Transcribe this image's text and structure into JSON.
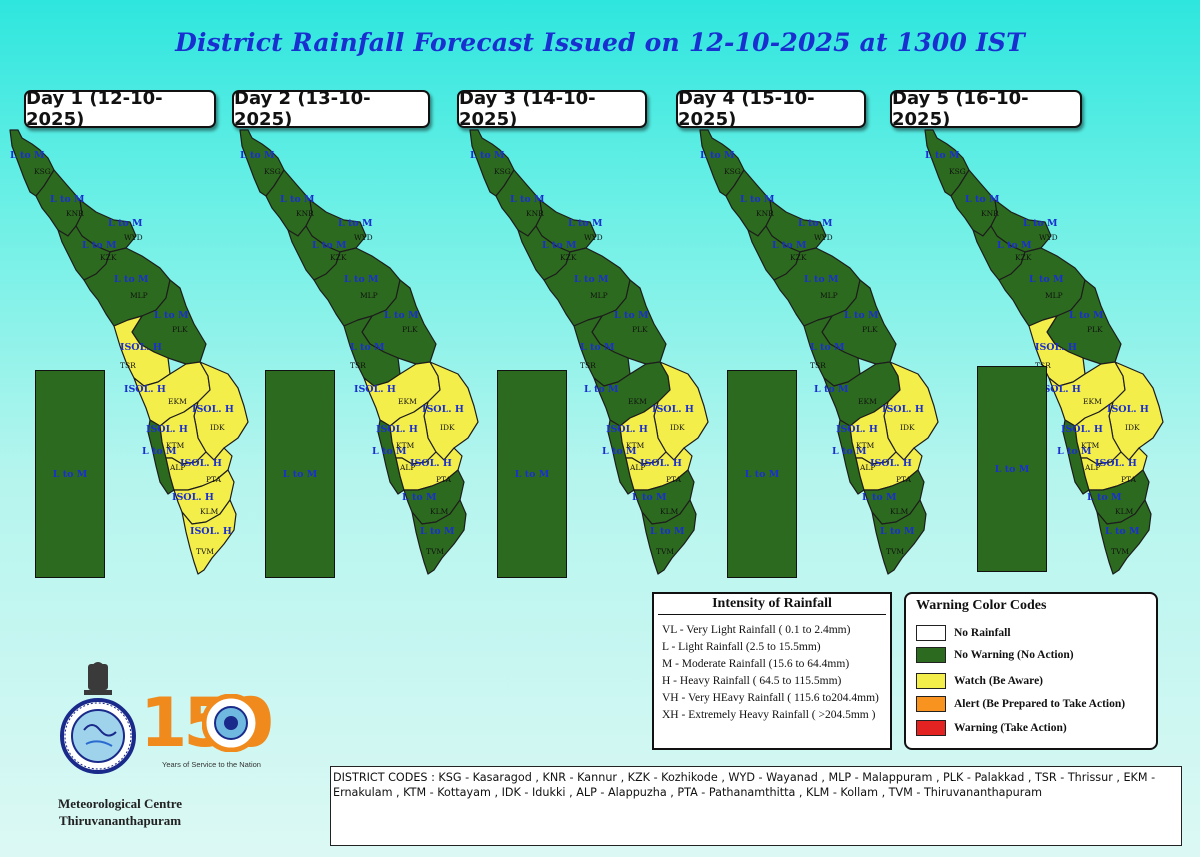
{
  "title": "District Rainfall Forecast Issued on  12-10-2025 at 1300 IST",
  "colors": {
    "green": "#2c6b1f",
    "yellow": "#f4ee4a",
    "orange": "#f7931e",
    "red": "#e32222",
    "white": "#ffffff",
    "label_blue": "#1a2fd0"
  },
  "days": [
    {
      "label": "Day 1 (12-10-2025)",
      "district_colors": {
        "KSG": "green",
        "KNR": "green",
        "WYD": "green",
        "KZK": "green",
        "MLP": "green",
        "PLK": "green",
        "TSR": "yellow",
        "EKM": "yellow",
        "IDK": "yellow",
        "KTM": "yellow",
        "ALP": "green",
        "PTA": "yellow",
        "KLM": "yellow",
        "TVM": "yellow"
      },
      "labels": {
        "KSG": "L to M",
        "KNR": "L to M",
        "WYD": "L to M",
        "KZK": "L to M",
        "MLP": "L to M",
        "PLK": "L to M",
        "TSR": "ISOL. H",
        "EKM": "ISOL. H",
        "IDK": "ISOL. H",
        "KTM": "ISOL. H",
        "ALP": "L to M",
        "PTA": "ISOL. H",
        "KLM": "ISOL. H",
        "TVM": "ISOL. H"
      },
      "lakshadweep": "L to M"
    },
    {
      "label": "Day 2 (13-10-2025)",
      "district_colors": {
        "KSG": "green",
        "KNR": "green",
        "WYD": "green",
        "KZK": "green",
        "MLP": "green",
        "PLK": "green",
        "TSR": "green",
        "EKM": "yellow",
        "IDK": "yellow",
        "KTM": "yellow",
        "ALP": "green",
        "PTA": "yellow",
        "KLM": "green",
        "TVM": "green"
      },
      "labels": {
        "KSG": "L to M",
        "KNR": "L to M",
        "WYD": "L to M",
        "KZK": "L to M",
        "MLP": "L to M",
        "PLK": "L to M",
        "TSR": "L to M",
        "EKM": "ISOL. H",
        "IDK": "ISOL. H",
        "KTM": "ISOL. H",
        "ALP": "L to M",
        "PTA": "ISOL. H",
        "KLM": "L to M",
        "TVM": "L to M"
      },
      "lakshadweep": "L to M"
    },
    {
      "label": "Day 3 (14-10-2025)",
      "district_colors": {
        "KSG": "green",
        "KNR": "green",
        "WYD": "green",
        "KZK": "green",
        "MLP": "green",
        "PLK": "green",
        "TSR": "green",
        "EKM": "green",
        "IDK": "yellow",
        "KTM": "yellow",
        "ALP": "green",
        "PTA": "yellow",
        "KLM": "green",
        "TVM": "green"
      },
      "labels": {
        "KSG": "L to M",
        "KNR": "L to M",
        "WYD": "L to M",
        "KZK": "L to M",
        "MLP": "L to M",
        "PLK": "L to M",
        "TSR": "L to M",
        "EKM": "L to M",
        "IDK": "ISOL. H",
        "KTM": "ISOL. H",
        "ALP": "L to M",
        "PTA": "ISOL. H",
        "KLM": "L to M",
        "TVM": "L to M"
      },
      "lakshadweep": "L to M"
    },
    {
      "label": "Day 4 (15-10-2025)",
      "district_colors": {
        "KSG": "green",
        "KNR": "green",
        "WYD": "green",
        "KZK": "green",
        "MLP": "green",
        "PLK": "green",
        "TSR": "green",
        "EKM": "green",
        "IDK": "yellow",
        "KTM": "yellow",
        "ALP": "green",
        "PTA": "yellow",
        "KLM": "green",
        "TVM": "green"
      },
      "labels": {
        "KSG": "L to M",
        "KNR": "L to M",
        "WYD": "L to M",
        "KZK": "L to M",
        "MLP": "L to M",
        "PLK": "L to M",
        "TSR": "L to M",
        "EKM": "L to M",
        "IDK": "ISOL. H",
        "KTM": "ISOL. H",
        "ALP": "L to M",
        "PTA": "ISOL. H",
        "KLM": "L to M",
        "TVM": "L to M"
      },
      "lakshadweep": "L to M"
    },
    {
      "label": "Day 5 (16-10-2025)",
      "district_colors": {
        "KSG": "green",
        "KNR": "green",
        "WYD": "green",
        "KZK": "green",
        "MLP": "green",
        "PLK": "green",
        "TSR": "yellow",
        "EKM": "yellow",
        "IDK": "yellow",
        "KTM": "yellow",
        "ALP": "green",
        "PTA": "yellow",
        "KLM": "green",
        "TVM": "green"
      },
      "labels": {
        "KSG": "L to M",
        "KNR": "L to M",
        "WYD": "L to M",
        "KZK": "L to M",
        "MLP": "L to M",
        "PLK": "L to M",
        "TSR": "ISOL. H",
        "EKM": "ISOL. H",
        "IDK": "ISOL. H",
        "KTM": "ISOL. H",
        "ALP": "L to M",
        "PTA": "ISOL. H",
        "KLM": "L to M",
        "TVM": "L to M"
      },
      "lakshadweep": "L to M"
    }
  ],
  "intensity": {
    "title": "Intensity of Rainfall",
    "rows": [
      "VL - Very Light Rainfall ( 0.1 to 2.4mm)",
      "L  - Light Rainfall (2.5 to 15.5mm)",
      "M  - Moderate Rainfall (15.6 to 64.4mm)",
      "H  - Heavy Rainfall ( 64.5 to 115.5mm)",
      "VH - Very HEavy Rainfall ( 115.6 to204.4mm)",
      "XH - Extremely Heavy Rainfall ( >204.5mm )"
    ]
  },
  "warning_codes": {
    "title": "Warning Color Codes",
    "items": [
      {
        "color": "white",
        "label": "No Rainfall"
      },
      {
        "color": "green",
        "label": "No Warning (No Action)"
      },
      {
        "color": "yellow",
        "label": "Watch (Be Aware)"
      },
      {
        "color": "orange",
        "label": "Alert (Be Prepared to Take Action)"
      },
      {
        "color": "red",
        "label": "Warning (Take Action)"
      }
    ]
  },
  "district_codes": "DISTRICT CODES : KSG - Kasaragod , KNR - Kannur , KZK - Kozhikode , WYD - Wayanad , MLP - Malappuram , PLK - Palakkad , TSR - Thrissur , EKM - Ernakulam , KTM - Kottayam , IDK - Idukki , ALP - Alappuzha ,      PTA - Pathanamthitta , KLM - Kollam , TVM - Thiruvananthapuram",
  "logo": {
    "caption_line1": "Meteorological Centre",
    "caption_line2": "Thiruvananthapuram",
    "anniversary_number": "150",
    "anniversary_tagline": "Years of Service to the Nation",
    "seal_icon": "imd-seal-icon",
    "emblem_icon": "national-emblem-icon"
  }
}
